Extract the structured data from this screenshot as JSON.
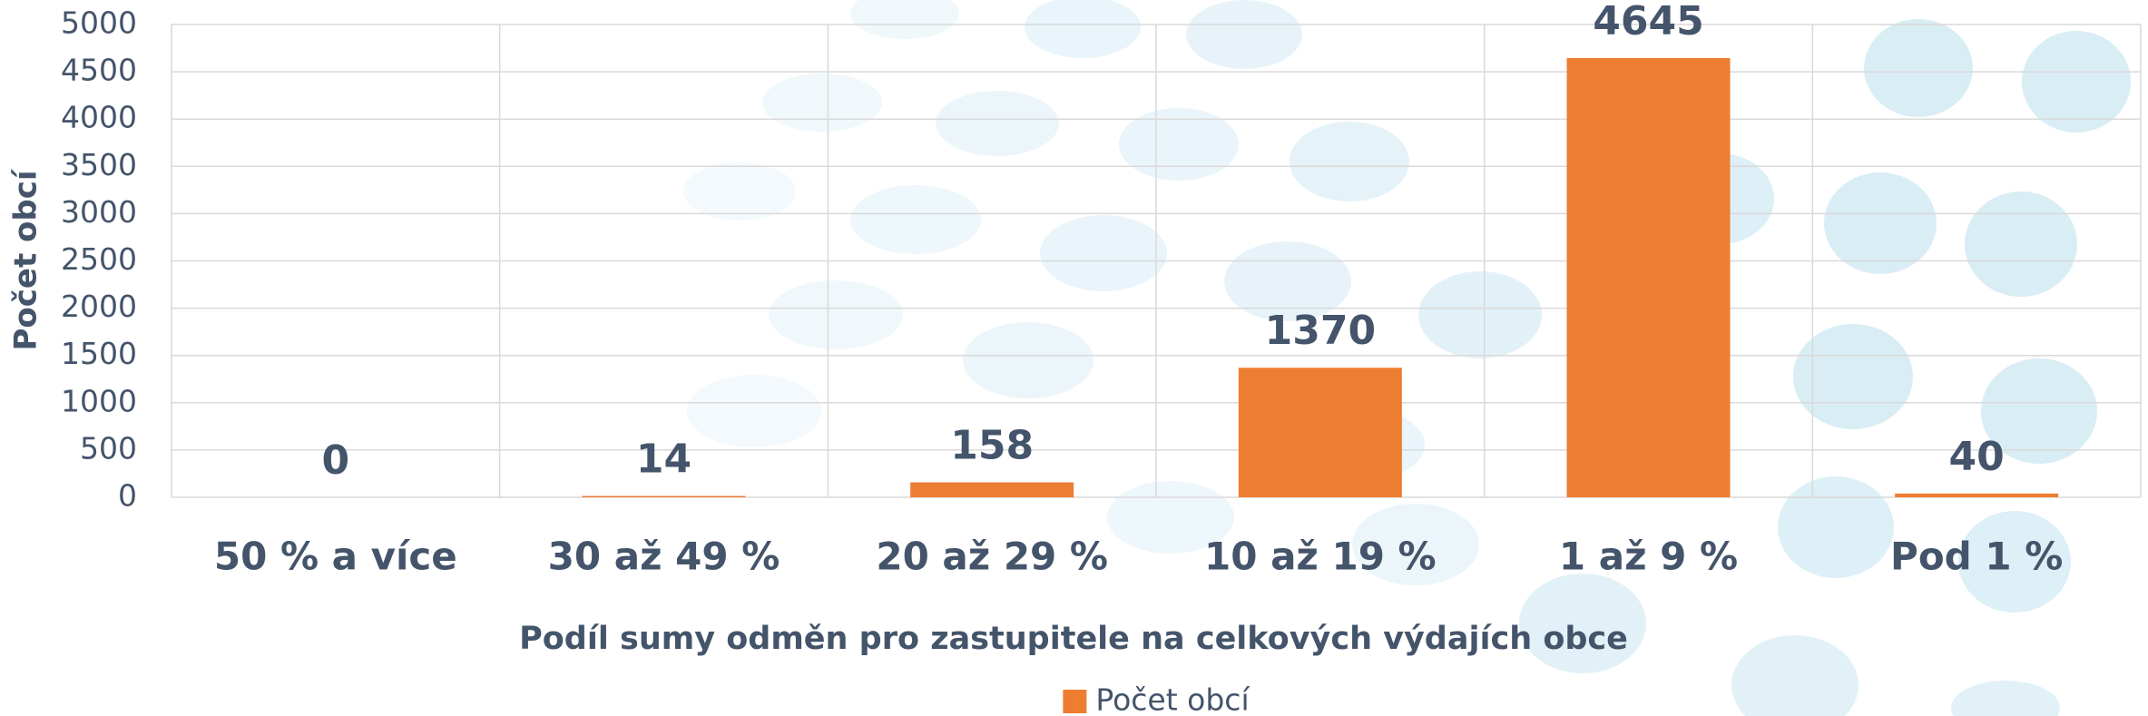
{
  "chart_data": {
    "type": "bar",
    "y_label": "Počet obcí",
    "x_label": "Podíl sumy odměn pro zastupitele na celkových výdajích obce",
    "categories": [
      "50 % a více",
      "30 až 49 %",
      "20 až 29 %",
      "10 až 19 %",
      "1 až 9 %",
      "Pod 1 %"
    ],
    "series": [
      {
        "name": "Počet obcí",
        "color": "#ed7d31",
        "values": [
          0,
          14,
          158,
          1370,
          4645,
          40
        ]
      }
    ],
    "ylim": [
      0,
      5000
    ],
    "yticks": [
      0,
      500,
      1000,
      1500,
      2000,
      2500,
      3000,
      3500,
      4000,
      4500,
      5000
    ],
    "grid": true,
    "legend": "bottom"
  }
}
